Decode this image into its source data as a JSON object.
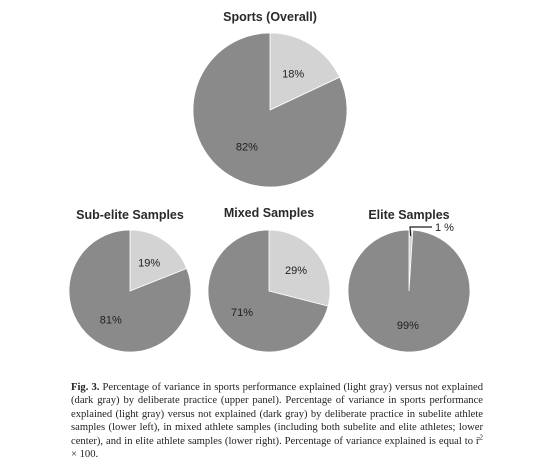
{
  "chart_data": [
    {
      "type": "pie",
      "title": "Sports (Overall)",
      "slices": [
        {
          "name": "explained",
          "value": 18,
          "label": "18%",
          "color": "#d3d3d3"
        },
        {
          "name": "not explained",
          "value": 82,
          "label": "82%",
          "color": "#8a8a8a"
        }
      ]
    },
    {
      "type": "pie",
      "title": "Sub-elite Samples",
      "slices": [
        {
          "name": "explained",
          "value": 19,
          "label": "19%",
          "color": "#d3d3d3"
        },
        {
          "name": "not explained",
          "value": 81,
          "label": "81%",
          "color": "#8a8a8a"
        }
      ]
    },
    {
      "type": "pie",
      "title": "Mixed Samples",
      "slices": [
        {
          "name": "explained",
          "value": 29,
          "label": "29%",
          "color": "#d3d3d3"
        },
        {
          "name": "not explained",
          "value": 71,
          "label": "71%",
          "color": "#8a8a8a"
        }
      ]
    },
    {
      "type": "pie",
      "title": "Elite Samples",
      "slices": [
        {
          "name": "explained",
          "value": 1,
          "label": "1 %",
          "color": "#d3d3d3"
        },
        {
          "name": "not explained",
          "value": 99,
          "label": "99%",
          "color": "#8a8a8a"
        }
      ]
    }
  ],
  "caption": {
    "label": "Fig. 3.",
    "text_before_r": "Percentage of variance in sports performance explained (light gray) versus not explained (dark gray) by deliberate practice (upper panel). Percentage of variance in sports performance explained (light gray) versus not explained (dark gray) by deliberate practice in subelite athlete samples (lower left), in mixed athlete samples (including both subelite and elite athletes; lower center), and in elite athlete samples (lower right). Percentage of variance explained is equal to",
    "r_symbol": "r̄",
    "r_exponent": "2",
    "text_after_r": "× 100."
  }
}
